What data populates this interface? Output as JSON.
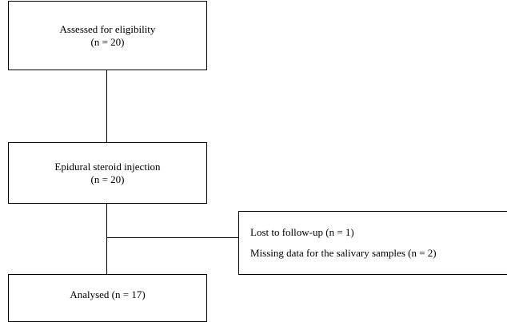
{
  "flowchart": {
    "eligibility": {
      "label": "Assessed for eligibility",
      "count": "(n = 20)"
    },
    "intervention": {
      "label": "Epidural steroid injection",
      "count": "(n = 20)"
    },
    "excluded": {
      "items": [
        "Lost to follow-up (n = 1)",
        "Missing data for the salivary samples (n = 2)"
      ]
    },
    "analysed": {
      "label": "Analysed (n = 17)"
    }
  }
}
